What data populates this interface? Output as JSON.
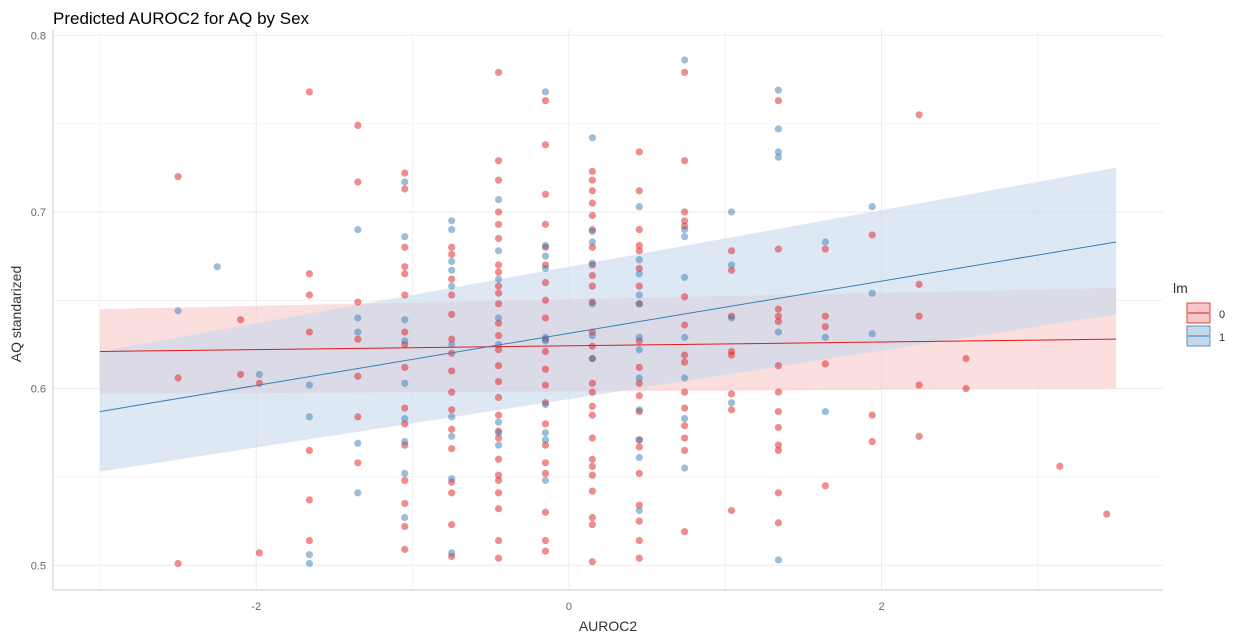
{
  "chart_data": {
    "type": "scatter",
    "title": "Predicted AUROC2 for AQ by Sex",
    "xlabel": "AUROC2",
    "ylabel": "AQ standarized",
    "xlim": [
      -3.3,
      3.8
    ],
    "ylim": [
      0.486,
      0.803
    ],
    "xticks": [
      -2,
      0,
      2
    ],
    "xtick_labels": [
      "-2",
      "0",
      "2"
    ],
    "yticks": [
      0.5,
      0.6,
      0.7,
      0.8
    ],
    "ytick_labels": [
      "0.5",
      "0.6",
      "0.7",
      "0.8"
    ],
    "grid": true,
    "legend": {
      "title": "lm",
      "placement": "right",
      "entries": [
        "0",
        "1"
      ]
    },
    "colors": {
      "0": "#e41a1c",
      "1": "#377eb8",
      "band0": "#f8c8c8",
      "band1": "#c6d8ec",
      "grid": "#ebebeb"
    },
    "series": [
      {
        "name": "0",
        "fit": {
          "x": [
            -3.0,
            3.5
          ],
          "y": [
            0.621,
            0.628
          ]
        },
        "ci": {
          "x": [
            -3.0,
            3.5
          ],
          "lower": [
            0.597,
            0.6
          ],
          "upper": [
            0.645,
            0.657
          ]
        },
        "points": [
          [
            -2.5,
            0.72
          ],
          [
            -2.5,
            0.606
          ],
          [
            -2.5,
            0.501
          ],
          [
            -2.1,
            0.639
          ],
          [
            -2.1,
            0.608
          ],
          [
            -1.98,
            0.603
          ],
          [
            -1.98,
            0.507
          ],
          [
            -1.66,
            0.768
          ],
          [
            -1.66,
            0.665
          ],
          [
            -1.66,
            0.653
          ],
          [
            -1.66,
            0.632
          ],
          [
            -1.66,
            0.565
          ],
          [
            -1.66,
            0.537
          ],
          [
            -1.66,
            0.514
          ],
          [
            -1.35,
            0.749
          ],
          [
            -1.35,
            0.717
          ],
          [
            -1.35,
            0.649
          ],
          [
            -1.35,
            0.628
          ],
          [
            -1.35,
            0.607
          ],
          [
            -1.35,
            0.584
          ],
          [
            -1.35,
            0.558
          ],
          [
            -1.05,
            0.722
          ],
          [
            -1.05,
            0.713
          ],
          [
            -1.05,
            0.68
          ],
          [
            -1.05,
            0.669
          ],
          [
            -1.05,
            0.665
          ],
          [
            -1.05,
            0.653
          ],
          [
            -1.05,
            0.632
          ],
          [
            -1.05,
            0.625
          ],
          [
            -1.05,
            0.612
          ],
          [
            -1.05,
            0.589
          ],
          [
            -1.05,
            0.58
          ],
          [
            -1.05,
            0.568
          ],
          [
            -1.05,
            0.548
          ],
          [
            -1.05,
            0.535
          ],
          [
            -1.05,
            0.522
          ],
          [
            -1.05,
            0.509
          ],
          [
            -0.75,
            0.68
          ],
          [
            -0.75,
            0.676
          ],
          [
            -0.75,
            0.662
          ],
          [
            -0.75,
            0.653
          ],
          [
            -0.75,
            0.642
          ],
          [
            -0.75,
            0.628
          ],
          [
            -0.75,
            0.62
          ],
          [
            -0.75,
            0.61
          ],
          [
            -0.75,
            0.598
          ],
          [
            -0.75,
            0.588
          ],
          [
            -0.75,
            0.577
          ],
          [
            -0.75,
            0.566
          ],
          [
            -0.75,
            0.547
          ],
          [
            -0.75,
            0.541
          ],
          [
            -0.75,
            0.523
          ],
          [
            -0.75,
            0.505
          ],
          [
            -0.45,
            0.779
          ],
          [
            -0.45,
            0.729
          ],
          [
            -0.45,
            0.718
          ],
          [
            -0.45,
            0.7
          ],
          [
            -0.45,
            0.693
          ],
          [
            -0.45,
            0.685
          ],
          [
            -0.45,
            0.67
          ],
          [
            -0.45,
            0.666
          ],
          [
            -0.45,
            0.658
          ],
          [
            -0.45,
            0.654
          ],
          [
            -0.45,
            0.648
          ],
          [
            -0.45,
            0.637
          ],
          [
            -0.45,
            0.63
          ],
          [
            -0.45,
            0.622
          ],
          [
            -0.45,
            0.613
          ],
          [
            -0.45,
            0.604
          ],
          [
            -0.45,
            0.595
          ],
          [
            -0.45,
            0.585
          ],
          [
            -0.45,
            0.576
          ],
          [
            -0.45,
            0.572
          ],
          [
            -0.45,
            0.56
          ],
          [
            -0.45,
            0.551
          ],
          [
            -0.45,
            0.548
          ],
          [
            -0.45,
            0.541
          ],
          [
            -0.45,
            0.532
          ],
          [
            -0.45,
            0.514
          ],
          [
            -0.45,
            0.504
          ],
          [
            -0.15,
            0.763
          ],
          [
            -0.15,
            0.738
          ],
          [
            -0.15,
            0.71
          ],
          [
            -0.15,
            0.693
          ],
          [
            -0.15,
            0.68
          ],
          [
            -0.15,
            0.67
          ],
          [
            -0.15,
            0.66
          ],
          [
            -0.15,
            0.65
          ],
          [
            -0.15,
            0.64
          ],
          [
            -0.15,
            0.628
          ],
          [
            -0.15,
            0.621
          ],
          [
            -0.15,
            0.611
          ],
          [
            -0.15,
            0.602
          ],
          [
            -0.15,
            0.592
          ],
          [
            -0.15,
            0.58
          ],
          [
            -0.15,
            0.568
          ],
          [
            -0.15,
            0.558
          ],
          [
            -0.15,
            0.552
          ],
          [
            -0.15,
            0.53
          ],
          [
            -0.15,
            0.514
          ],
          [
            -0.15,
            0.508
          ],
          [
            0.15,
            0.723
          ],
          [
            0.15,
            0.718
          ],
          [
            0.15,
            0.712
          ],
          [
            0.15,
            0.705
          ],
          [
            0.15,
            0.698
          ],
          [
            0.15,
            0.69
          ],
          [
            0.15,
            0.68
          ],
          [
            0.15,
            0.67
          ],
          [
            0.15,
            0.664
          ],
          [
            0.15,
            0.658
          ],
          [
            0.15,
            0.649
          ],
          [
            0.15,
            0.632
          ],
          [
            0.15,
            0.624
          ],
          [
            0.15,
            0.617
          ],
          [
            0.15,
            0.603
          ],
          [
            0.15,
            0.598
          ],
          [
            0.15,
            0.59
          ],
          [
            0.15,
            0.585
          ],
          [
            0.15,
            0.572
          ],
          [
            0.15,
            0.56
          ],
          [
            0.15,
            0.556
          ],
          [
            0.15,
            0.551
          ],
          [
            0.15,
            0.542
          ],
          [
            0.15,
            0.527
          ],
          [
            0.15,
            0.523
          ],
          [
            0.15,
            0.502
          ],
          [
            0.45,
            0.734
          ],
          [
            0.45,
            0.712
          ],
          [
            0.45,
            0.69
          ],
          [
            0.45,
            0.681
          ],
          [
            0.45,
            0.678
          ],
          [
            0.45,
            0.668
          ],
          [
            0.45,
            0.658
          ],
          [
            0.45,
            0.648
          ],
          [
            0.45,
            0.627
          ],
          [
            0.45,
            0.612
          ],
          [
            0.45,
            0.603
          ],
          [
            0.45,
            0.596
          ],
          [
            0.45,
            0.587
          ],
          [
            0.45,
            0.571
          ],
          [
            0.45,
            0.567
          ],
          [
            0.45,
            0.552
          ],
          [
            0.45,
            0.534
          ],
          [
            0.45,
            0.525
          ],
          [
            0.45,
            0.514
          ],
          [
            0.45,
            0.504
          ],
          [
            0.74,
            0.779
          ],
          [
            0.74,
            0.729
          ],
          [
            0.74,
            0.7
          ],
          [
            0.74,
            0.695
          ],
          [
            0.74,
            0.692
          ],
          [
            0.74,
            0.652
          ],
          [
            0.74,
            0.636
          ],
          [
            0.74,
            0.619
          ],
          [
            0.74,
            0.615
          ],
          [
            0.74,
            0.598
          ],
          [
            0.74,
            0.589
          ],
          [
            0.74,
            0.579
          ],
          [
            0.74,
            0.572
          ],
          [
            0.74,
            0.565
          ],
          [
            0.74,
            0.519
          ],
          [
            1.04,
            0.678
          ],
          [
            1.04,
            0.667
          ],
          [
            1.04,
            0.641
          ],
          [
            1.04,
            0.621
          ],
          [
            1.04,
            0.619
          ],
          [
            1.04,
            0.597
          ],
          [
            1.04,
            0.588
          ],
          [
            1.04,
            0.531
          ],
          [
            1.34,
            0.763
          ],
          [
            1.34,
            0.679
          ],
          [
            1.34,
            0.645
          ],
          [
            1.34,
            0.641
          ],
          [
            1.34,
            0.638
          ],
          [
            1.34,
            0.613
          ],
          [
            1.34,
            0.598
          ],
          [
            1.34,
            0.587
          ],
          [
            1.34,
            0.578
          ],
          [
            1.34,
            0.568
          ],
          [
            1.34,
            0.565
          ],
          [
            1.34,
            0.541
          ],
          [
            1.34,
            0.524
          ],
          [
            1.64,
            0.679
          ],
          [
            1.64,
            0.641
          ],
          [
            1.64,
            0.635
          ],
          [
            1.64,
            0.614
          ],
          [
            1.64,
            0.545
          ],
          [
            1.94,
            0.687
          ],
          [
            1.94,
            0.585
          ],
          [
            1.94,
            0.57
          ],
          [
            2.24,
            0.755
          ],
          [
            2.24,
            0.659
          ],
          [
            2.24,
            0.641
          ],
          [
            2.24,
            0.602
          ],
          [
            2.24,
            0.573
          ],
          [
            2.54,
            0.617
          ],
          [
            2.54,
            0.6
          ],
          [
            3.14,
            0.556
          ],
          [
            3.44,
            0.529
          ]
        ]
      },
      {
        "name": "1",
        "fit": {
          "x": [
            -3.0,
            3.5
          ],
          "y": [
            0.587,
            0.683
          ]
        },
        "ci": {
          "x": [
            -3.0,
            3.5
          ],
          "lower": [
            0.553,
            0.642
          ],
          "upper": [
            0.621,
            0.725
          ]
        },
        "points": [
          [
            -2.5,
            0.644
          ],
          [
            -2.25,
            0.669
          ],
          [
            -1.98,
            0.608
          ],
          [
            -1.66,
            0.602
          ],
          [
            -1.66,
            0.584
          ],
          [
            -1.66,
            0.506
          ],
          [
            -1.66,
            0.501
          ],
          [
            -1.35,
            0.69
          ],
          [
            -1.35,
            0.64
          ],
          [
            -1.35,
            0.632
          ],
          [
            -1.35,
            0.569
          ],
          [
            -1.35,
            0.541
          ],
          [
            -1.05,
            0.717
          ],
          [
            -1.05,
            0.686
          ],
          [
            -1.05,
            0.639
          ],
          [
            -1.05,
            0.627
          ],
          [
            -1.05,
            0.603
          ],
          [
            -1.05,
            0.583
          ],
          [
            -1.05,
            0.57
          ],
          [
            -1.05,
            0.552
          ],
          [
            -1.05,
            0.527
          ],
          [
            -0.75,
            0.695
          ],
          [
            -0.75,
            0.69
          ],
          [
            -0.75,
            0.672
          ],
          [
            -0.75,
            0.667
          ],
          [
            -0.75,
            0.658
          ],
          [
            -0.75,
            0.625
          ],
          [
            -0.75,
            0.584
          ],
          [
            -0.75,
            0.573
          ],
          [
            -0.75,
            0.549
          ],
          [
            -0.75,
            0.507
          ],
          [
            -0.45,
            0.707
          ],
          [
            -0.45,
            0.678
          ],
          [
            -0.45,
            0.662
          ],
          [
            -0.45,
            0.64
          ],
          [
            -0.45,
            0.625
          ],
          [
            -0.45,
            0.581
          ],
          [
            -0.45,
            0.575
          ],
          [
            -0.45,
            0.568
          ],
          [
            -0.15,
            0.768
          ],
          [
            -0.15,
            0.681
          ],
          [
            -0.15,
            0.675
          ],
          [
            -0.15,
            0.668
          ],
          [
            -0.15,
            0.629
          ],
          [
            -0.15,
            0.627
          ],
          [
            -0.15,
            0.591
          ],
          [
            -0.15,
            0.575
          ],
          [
            -0.15,
            0.571
          ],
          [
            -0.15,
            0.548
          ],
          [
            0.15,
            0.742
          ],
          [
            0.15,
            0.689
          ],
          [
            0.15,
            0.683
          ],
          [
            0.15,
            0.671
          ],
          [
            0.15,
            0.648
          ],
          [
            0.15,
            0.63
          ],
          [
            0.15,
            0.617
          ],
          [
            0.45,
            0.703
          ],
          [
            0.45,
            0.673
          ],
          [
            0.45,
            0.665
          ],
          [
            0.45,
            0.653
          ],
          [
            0.45,
            0.648
          ],
          [
            0.45,
            0.629
          ],
          [
            0.45,
            0.622
          ],
          [
            0.45,
            0.606
          ],
          [
            0.45,
            0.588
          ],
          [
            0.45,
            0.571
          ],
          [
            0.45,
            0.561
          ],
          [
            0.45,
            0.531
          ],
          [
            0.74,
            0.786
          ],
          [
            0.74,
            0.69
          ],
          [
            0.74,
            0.686
          ],
          [
            0.74,
            0.663
          ],
          [
            0.74,
            0.629
          ],
          [
            0.74,
            0.606
          ],
          [
            0.74,
            0.583
          ],
          [
            0.74,
            0.555
          ],
          [
            1.04,
            0.7
          ],
          [
            1.04,
            0.67
          ],
          [
            1.04,
            0.64
          ],
          [
            1.04,
            0.592
          ],
          [
            1.34,
            0.769
          ],
          [
            1.34,
            0.747
          ],
          [
            1.34,
            0.734
          ],
          [
            1.34,
            0.731
          ],
          [
            1.34,
            0.632
          ],
          [
            1.34,
            0.503
          ],
          [
            1.64,
            0.683
          ],
          [
            1.64,
            0.629
          ],
          [
            1.64,
            0.587
          ],
          [
            1.94,
            0.703
          ],
          [
            1.94,
            0.654
          ],
          [
            1.94,
            0.631
          ]
        ]
      }
    ]
  }
}
